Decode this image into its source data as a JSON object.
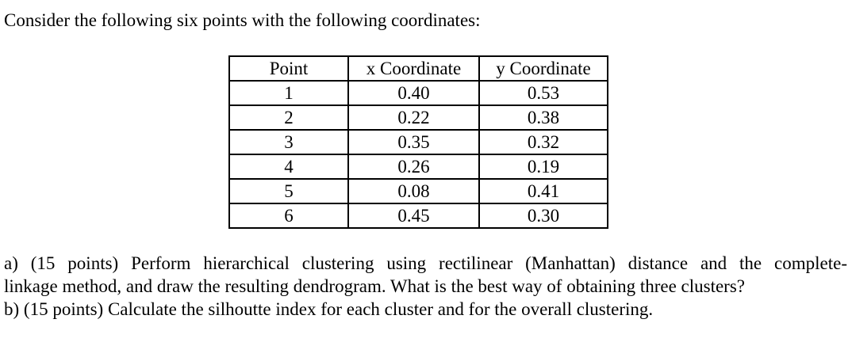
{
  "intro": {
    "text": "Consider the following six points with the following coordinates:"
  },
  "table": {
    "headers": [
      "Point",
      "x Coordinate",
      "y Coordinate"
    ],
    "rows": [
      [
        "1",
        "0.40",
        "0.53"
      ],
      [
        "2",
        "0.22",
        "0.38"
      ],
      [
        "3",
        "0.35",
        "0.32"
      ],
      [
        "4",
        "0.26",
        "0.19"
      ],
      [
        "5",
        "0.08",
        "0.41"
      ],
      [
        "6",
        "0.45",
        "0.30"
      ]
    ]
  },
  "questions": {
    "a_line1": "a) (15 points) Perform hierarchical clustering using rectilinear (Manhattan) distance and the complete-",
    "a_line2": "linkage method, and draw the resulting dendrogram. What is the best way of obtaining three clusters?",
    "b_line": "b) (15 points) Calculate the silhoutte index for each cluster and for the overall clustering."
  }
}
